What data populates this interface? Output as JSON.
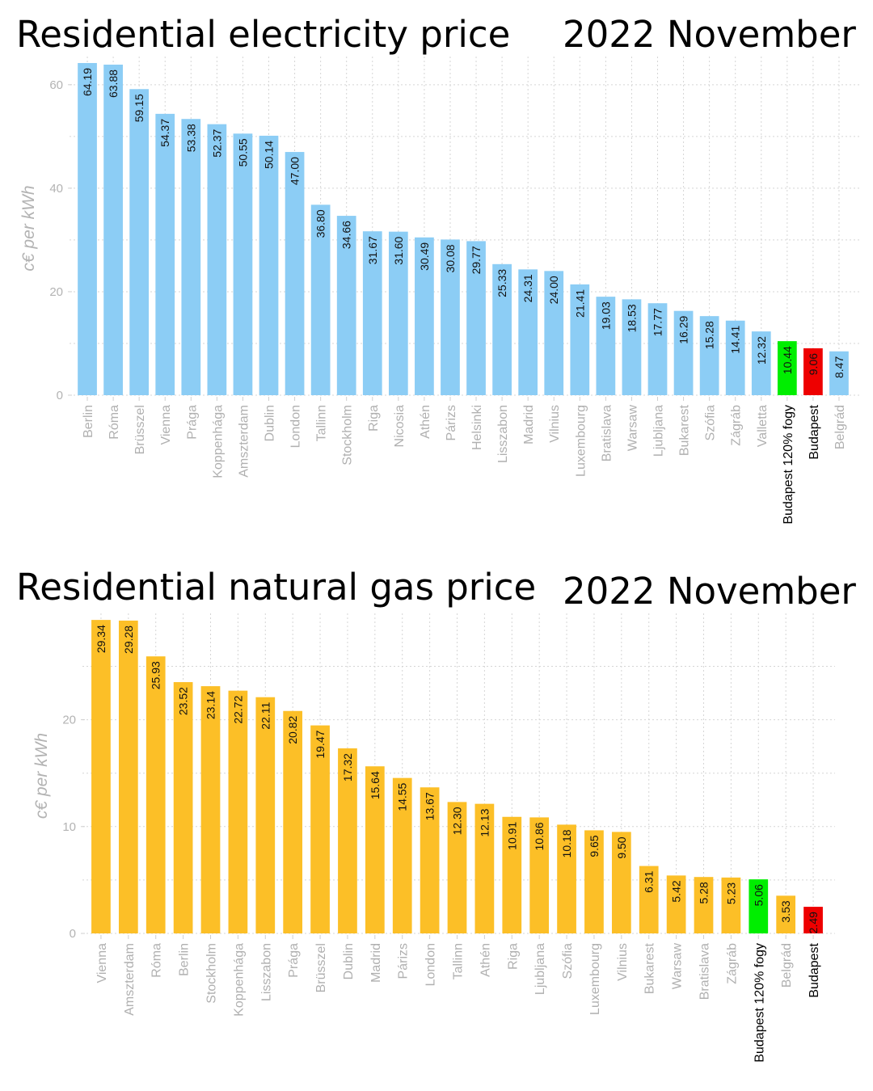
{
  "chart_data": [
    {
      "type": "bar",
      "title": "Residential electricity price",
      "subtitle": "2022 November",
      "xlabel": "",
      "ylabel": "c€ per kWh",
      "ylim": [
        0,
        64.5
      ],
      "yticks": [
        0,
        20,
        40,
        60
      ],
      "grid": true,
      "categories": [
        "Berlin",
        "Róma",
        "Brüsszel",
        "Vienna",
        "Prága",
        "Koppenhága",
        "Amszterdam",
        "Dublin",
        "London",
        "Tallinn",
        "Stockholm",
        "Riga",
        "Nicosia",
        "Athén",
        "Párizs",
        "Helsinki",
        "Lisszabon",
        "Madrid",
        "Vilnius",
        "Luxembourg",
        "Bratislava",
        "Warsaw",
        "Ljubljana",
        "Bukarest",
        "Szófia",
        "Zágráb",
        "Valletta",
        "Budapest 120% fogy",
        "Budapest",
        "Belgrád"
      ],
      "values": [
        64.19,
        63.88,
        59.15,
        54.37,
        53.38,
        52.37,
        50.55,
        50.14,
        47.0,
        36.8,
        34.66,
        31.67,
        31.6,
        30.49,
        30.08,
        29.77,
        25.33,
        24.31,
        24.0,
        21.41,
        19.03,
        18.53,
        17.77,
        16.29,
        15.28,
        14.41,
        12.32,
        10.44,
        9.06,
        8.47
      ],
      "value_labels": [
        "64.19",
        "63.88",
        "59.15",
        "54.37",
        "53.38",
        "52.37",
        "50.55",
        "50.14",
        "47.00",
        "36.80",
        "34.66",
        "31.67",
        "31.60",
        "30.49",
        "30.08",
        "29.77",
        "25.33",
        "24.31",
        "24.00",
        "21.41",
        "19.03",
        "18.53",
        "17.77",
        "16.29",
        "15.28",
        "14.41",
        "12.32",
        "10.44",
        "9.06",
        "8.47"
      ],
      "colors": {
        "default": "#8ccdf5",
        "Budapest 120% fogy": "#00ee00",
        "Budapest": "#ee0000"
      },
      "highlighted_tick_labels": [
        "Budapest 120% fogy",
        "Budapest"
      ]
    },
    {
      "type": "bar",
      "title": "Residential natural gas price",
      "subtitle": "2022 November",
      "xlabel": "",
      "ylabel": "c€ per kWh",
      "ylim": [
        0,
        29.5
      ],
      "yticks": [
        0,
        10,
        20
      ],
      "grid": true,
      "categories": [
        "Vienna",
        "Amszterdam",
        "Róma",
        "Berlin",
        "Stockholm",
        "Koppenhága",
        "Lisszabon",
        "Prága",
        "Brüsszel",
        "Dublin",
        "Madrid",
        "Párizs",
        "London",
        "Tallinn",
        "Athén",
        "Riga",
        "Ljubljana",
        "Szófia",
        "Luxembourg",
        "Vilnius",
        "Bukarest",
        "Warsaw",
        "Bratislava",
        "Zágráb",
        "Budapest 120% fogy",
        "Belgrád",
        "Budapest"
      ],
      "values": [
        29.34,
        29.28,
        25.93,
        23.52,
        23.14,
        22.72,
        22.11,
        20.82,
        19.47,
        17.32,
        15.64,
        14.55,
        13.67,
        12.3,
        12.13,
        10.91,
        10.86,
        10.18,
        9.65,
        9.5,
        6.31,
        5.42,
        5.28,
        5.23,
        5.06,
        3.53,
        2.49
      ],
      "value_labels": [
        "29.34",
        "29.28",
        "25.93",
        "23.52",
        "23.14",
        "22.72",
        "22.11",
        "20.82",
        "19.47",
        "17.32",
        "15.64",
        "14.55",
        "13.67",
        "12.30",
        "12.13",
        "10.91",
        "10.86",
        "10.18",
        "9.65",
        "9.50",
        "6.31",
        "5.42",
        "5.28",
        "5.23",
        "5.06",
        "3.53",
        "2.49"
      ],
      "colors": {
        "default": "#fcbf27",
        "Budapest 120% fogy": "#00ee00",
        "Budapest": "#ee0000"
      },
      "highlighted_tick_labels": [
        "Budapest 120% fogy",
        "Budapest"
      ]
    }
  ]
}
